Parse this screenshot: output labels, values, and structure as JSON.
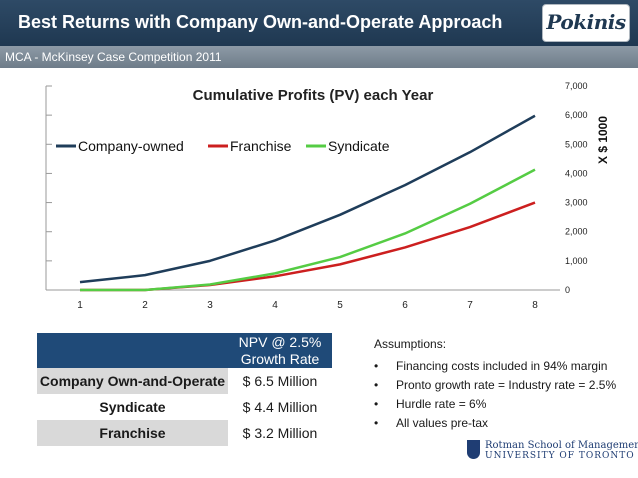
{
  "header": {
    "title": "Best Returns with Company Own-and-Operate Approach",
    "logo_text": "Pokinis"
  },
  "subheader": {
    "text": "MCA - McKinsey Case Competition 2011"
  },
  "chart_data": {
    "type": "line",
    "title": "Cumulative Profits (PV) each Year",
    "ylabel": "X $ 1000",
    "xlabel": "",
    "x": [
      1,
      2,
      3,
      4,
      5,
      6,
      7,
      8
    ],
    "ylim": [
      0,
      7000
    ],
    "yticks": [
      "0",
      "1,000",
      "2,000",
      "3,000",
      "4,000",
      "5,000",
      "6,000",
      "7,000"
    ],
    "xticks": [
      "1",
      "2",
      "3",
      "4",
      "5",
      "6",
      "7",
      "8"
    ],
    "legend_position": "top-left",
    "series": [
      {
        "name": "Company-owned",
        "color": "#1f3d5a",
        "values": [
          270,
          510,
          1000,
          1700,
          2580,
          3600,
          4730,
          5980
        ]
      },
      {
        "name": "Franchise",
        "color": "#cc1f1f",
        "values": [
          0,
          0,
          170,
          470,
          880,
          1460,
          2160,
          3000
        ]
      },
      {
        "name": "Syndicate",
        "color": "#55cc44",
        "values": [
          0,
          0,
          190,
          570,
          1130,
          1940,
          2960,
          4130
        ]
      }
    ]
  },
  "npv_table": {
    "header": [
      "NPV @ 2.5%",
      "Growth Rate"
    ],
    "rows": [
      {
        "label": "Company Own-and-Operate",
        "value": "$ 6.5 Million"
      },
      {
        "label": "Syndicate",
        "value": "$ 4.4 Million"
      },
      {
        "label": "Franchise",
        "value": "$ 3.2 Million"
      }
    ]
  },
  "assumptions": {
    "title": "Assumptions:",
    "bullet": "•",
    "items": [
      "Financing costs included in 94% margin",
      "Pronto growth rate = Industry rate = 2.5%",
      "Hurdle rate = 6%",
      "All values pre-tax"
    ]
  },
  "footer": {
    "school_line1": "Rotman School of Management",
    "school_line2": "UNIVERSITY OF TORONTO"
  }
}
